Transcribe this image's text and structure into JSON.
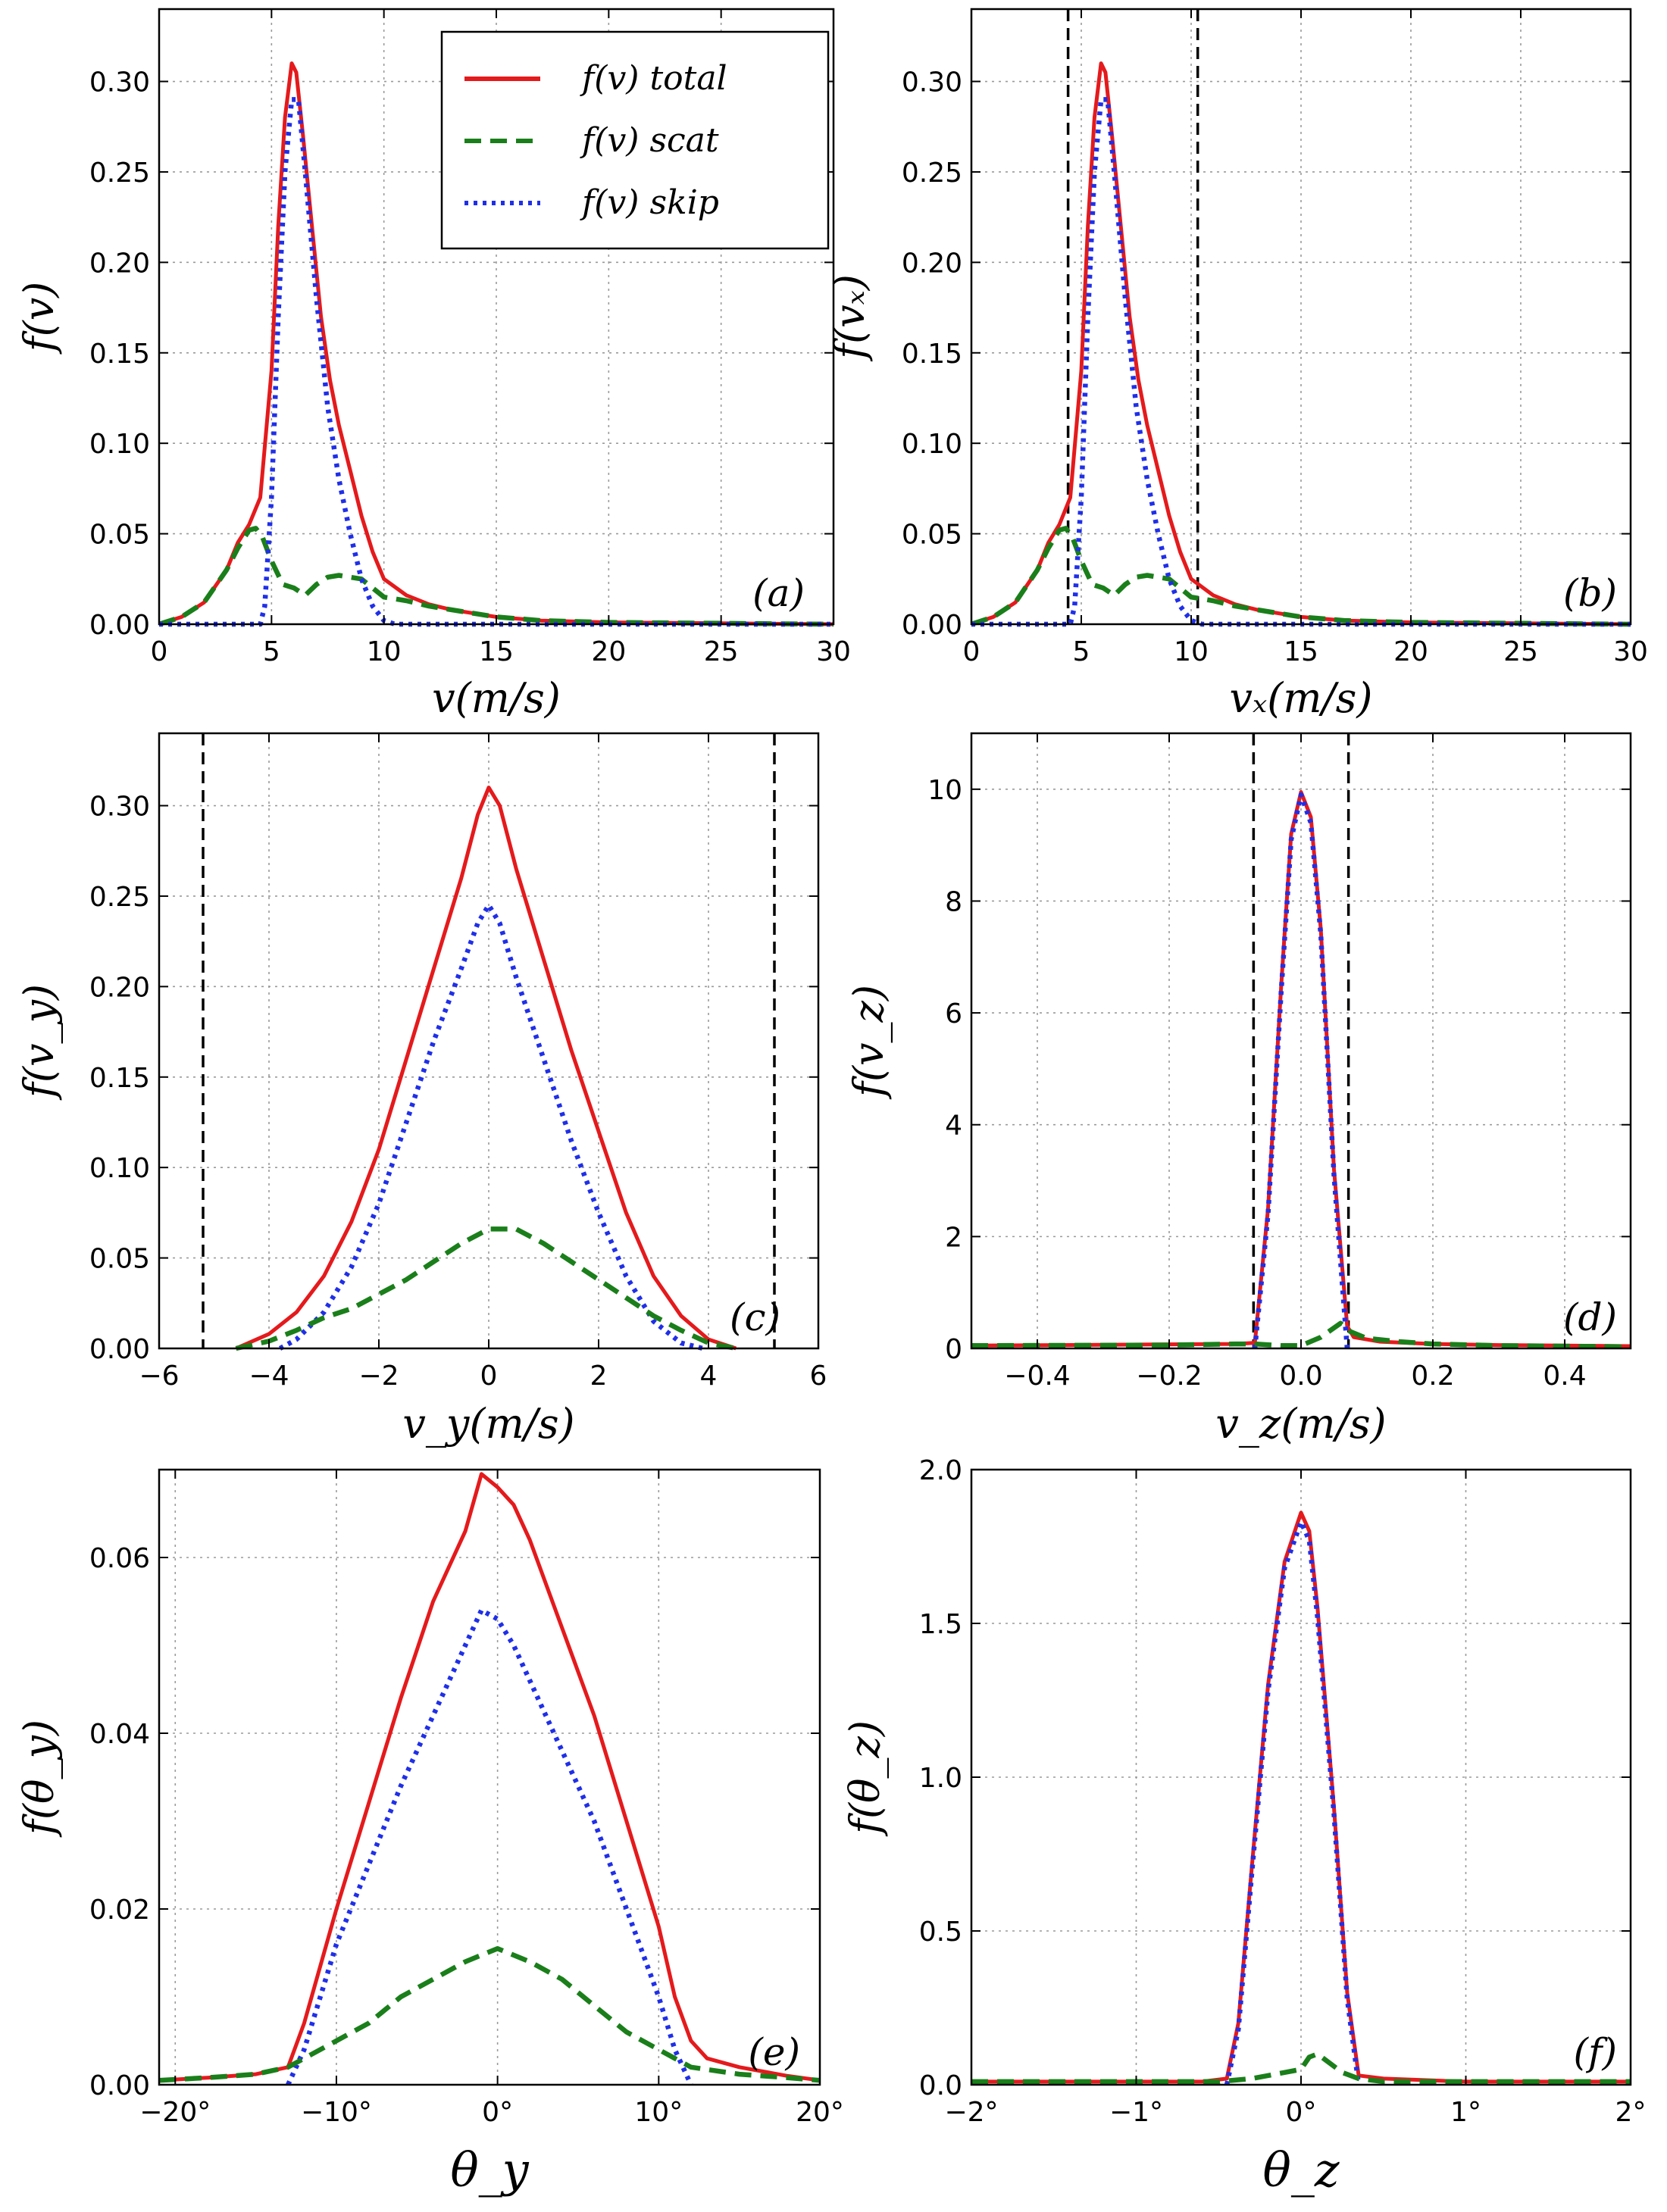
{
  "legend": [
    {
      "label": "f(v)  total",
      "color": "#e41a1c",
      "dash": "solid"
    },
    {
      "label": "f(v)  scat",
      "color": "#1a7f1a",
      "dash": "dashed"
    },
    {
      "label": "f(v)  skip",
      "color": "#1f2fe8",
      "dash": "dotted"
    }
  ],
  "colors": {
    "total": "#e41a1c",
    "scat": "#1a7f1a",
    "skip": "#1f2fe8",
    "vline": "#000000"
  },
  "chart_data": [
    {
      "id": "a",
      "type": "line",
      "panel_label": "(a)",
      "xlabel": "v(m/s)",
      "ylabel": "f(v)",
      "xlim": [
        0,
        30
      ],
      "ylim": [
        0,
        0.34
      ],
      "xticks": [
        0,
        5,
        10,
        15,
        20,
        25,
        30
      ],
      "xtick_labels": [
        "0",
        "5",
        "10",
        "15",
        "20",
        "25",
        "30"
      ],
      "yticks": [
        0,
        0.05,
        0.1,
        0.15,
        0.2,
        0.25,
        0.3
      ],
      "ytick_labels": [
        "0.00",
        "0.05",
        "0.10",
        "0.15",
        "0.20",
        "0.25",
        "0.30"
      ],
      "legend": true,
      "vlines": [],
      "series": [
        {
          "name": "total",
          "x": [
            0,
            1,
            2,
            3,
            3.5,
            4,
            4.5,
            5,
            5.3,
            5.6,
            5.9,
            6.1,
            6.4,
            6.8,
            7.2,
            7.6,
            8,
            8.5,
            9,
            9.5,
            10,
            11,
            12,
            13,
            14,
            15,
            17,
            20,
            25,
            30
          ],
          "y": [
            0,
            0.004,
            0.012,
            0.03,
            0.045,
            0.055,
            0.07,
            0.14,
            0.22,
            0.28,
            0.31,
            0.305,
            0.27,
            0.22,
            0.17,
            0.135,
            0.11,
            0.085,
            0.06,
            0.04,
            0.025,
            0.016,
            0.011,
            0.008,
            0.006,
            0.004,
            0.002,
            0.001,
            0.0005,
            0
          ]
        },
        {
          "name": "scat",
          "x": [
            0,
            1,
            2,
            3,
            3.5,
            4,
            4.3,
            4.6,
            5,
            5.5,
            6,
            6.5,
            7,
            7.5,
            8,
            8.5,
            9,
            9.5,
            10,
            11,
            12,
            13,
            14,
            15,
            17,
            20,
            25,
            30
          ],
          "y": [
            0,
            0.004,
            0.012,
            0.03,
            0.042,
            0.052,
            0.053,
            0.048,
            0.035,
            0.022,
            0.02,
            0.016,
            0.022,
            0.026,
            0.027,
            0.026,
            0.025,
            0.02,
            0.015,
            0.013,
            0.01,
            0.008,
            0.006,
            0.004,
            0.002,
            0.001,
            0.0005,
            0
          ]
        },
        {
          "name": "skip",
          "x": [
            0,
            4.5,
            4.7,
            5,
            5.3,
            5.6,
            5.9,
            6.2,
            6.5,
            7,
            7.5,
            8,
            8.5,
            9,
            9.5,
            10,
            10.5,
            30
          ],
          "y": [
            0,
            0,
            0.01,
            0.07,
            0.17,
            0.25,
            0.29,
            0.29,
            0.25,
            0.18,
            0.12,
            0.08,
            0.05,
            0.025,
            0.01,
            0.002,
            0,
            0
          ]
        }
      ]
    },
    {
      "id": "b",
      "type": "line",
      "panel_label": "(b)",
      "xlabel": "vₓ(m/s)",
      "ylabel": "f(vₓ)",
      "xlim": [
        0,
        30
      ],
      "ylim": [
        0,
        0.34
      ],
      "xticks": [
        0,
        5,
        10,
        15,
        20,
        25,
        30
      ],
      "xtick_labels": [
        "0",
        "5",
        "10",
        "15",
        "20",
        "25",
        "30"
      ],
      "yticks": [
        0,
        0.05,
        0.1,
        0.15,
        0.2,
        0.25,
        0.3
      ],
      "ytick_labels": [
        "0.00",
        "0.05",
        "0.10",
        "0.15",
        "0.20",
        "0.25",
        "0.30"
      ],
      "legend": false,
      "vlines": [
        4.4,
        10.3
      ],
      "series": [
        {
          "name": "total",
          "x": [
            0,
            1,
            2,
            3,
            3.5,
            4,
            4.5,
            5,
            5.3,
            5.6,
            5.9,
            6.1,
            6.4,
            6.8,
            7.2,
            7.6,
            8,
            8.5,
            9,
            9.5,
            10,
            11,
            12,
            13,
            14,
            15,
            17,
            20,
            25,
            30
          ],
          "y": [
            0,
            0.004,
            0.012,
            0.03,
            0.045,
            0.055,
            0.07,
            0.14,
            0.22,
            0.28,
            0.31,
            0.305,
            0.27,
            0.22,
            0.17,
            0.135,
            0.11,
            0.085,
            0.06,
            0.04,
            0.025,
            0.016,
            0.011,
            0.008,
            0.006,
            0.004,
            0.002,
            0.001,
            0.0005,
            0
          ]
        },
        {
          "name": "scat",
          "x": [
            0,
            1,
            2,
            3,
            3.5,
            4,
            4.3,
            4.6,
            5,
            5.5,
            6,
            6.5,
            7,
            7.5,
            8,
            8.5,
            9,
            9.5,
            10,
            11,
            12,
            13,
            14,
            15,
            17,
            20,
            25,
            30
          ],
          "y": [
            0,
            0.004,
            0.012,
            0.03,
            0.042,
            0.052,
            0.053,
            0.048,
            0.035,
            0.022,
            0.02,
            0.016,
            0.022,
            0.026,
            0.027,
            0.026,
            0.025,
            0.02,
            0.015,
            0.013,
            0.01,
            0.008,
            0.006,
            0.004,
            0.002,
            0.001,
            0.0005,
            0
          ]
        },
        {
          "name": "skip",
          "x": [
            0,
            4.5,
            4.7,
            5,
            5.3,
            5.6,
            5.9,
            6.2,
            6.5,
            7,
            7.5,
            8,
            8.5,
            9,
            9.5,
            10,
            10.5,
            30
          ],
          "y": [
            0,
            0,
            0.01,
            0.07,
            0.17,
            0.25,
            0.29,
            0.29,
            0.25,
            0.18,
            0.12,
            0.08,
            0.05,
            0.025,
            0.01,
            0.002,
            0,
            0
          ]
        }
      ]
    },
    {
      "id": "c",
      "type": "line",
      "panel_label": "(c)",
      "xlabel": "v_y(m/s)",
      "ylabel": "f(v_y)",
      "xlim": [
        -6,
        6
      ],
      "ylim": [
        0,
        0.34
      ],
      "xticks": [
        -6,
        -4,
        -2,
        0,
        2,
        4,
        6
      ],
      "xtick_labels": [
        "−6",
        "−4",
        "−2",
        "0",
        "2",
        "4",
        "6"
      ],
      "yticks": [
        0,
        0.05,
        0.1,
        0.15,
        0.2,
        0.25,
        0.3
      ],
      "ytick_labels": [
        "0.00",
        "0.05",
        "0.10",
        "0.15",
        "0.20",
        "0.25",
        "0.30"
      ],
      "legend": false,
      "vlines": [
        -5.2,
        5.2
      ],
      "series": [
        {
          "name": "total",
          "x": [
            -4.6,
            -4,
            -3.5,
            -3,
            -2.5,
            -2,
            -1.5,
            -1,
            -0.5,
            -0.2,
            0,
            0.2,
            0.5,
            1,
            1.5,
            2,
            2.5,
            3,
            3.5,
            4,
            4.5
          ],
          "y": [
            0,
            0.008,
            0.02,
            0.04,
            0.07,
            0.11,
            0.16,
            0.21,
            0.26,
            0.295,
            0.31,
            0.3,
            0.265,
            0.215,
            0.165,
            0.12,
            0.075,
            0.04,
            0.018,
            0.005,
            0
          ]
        },
        {
          "name": "skip",
          "x": [
            -3.8,
            -3.5,
            -3,
            -2.5,
            -2,
            -1.5,
            -1,
            -0.5,
            -0.2,
            0,
            0.2,
            0.5,
            1,
            1.5,
            2,
            2.5,
            3,
            3.5,
            3.9
          ],
          "y": [
            0,
            0.005,
            0.02,
            0.045,
            0.08,
            0.125,
            0.17,
            0.21,
            0.235,
            0.245,
            0.235,
            0.205,
            0.16,
            0.115,
            0.075,
            0.04,
            0.015,
            0.003,
            0
          ]
        },
        {
          "name": "scat",
          "x": [
            -4.6,
            -4,
            -3.5,
            -3,
            -2.5,
            -2,
            -1.5,
            -1,
            -0.5,
            0,
            0.5,
            1,
            1.5,
            2,
            2.5,
            3,
            3.5,
            4,
            4.5
          ],
          "y": [
            0,
            0.004,
            0.01,
            0.017,
            0.022,
            0.03,
            0.038,
            0.048,
            0.058,
            0.066,
            0.066,
            0.058,
            0.048,
            0.038,
            0.028,
            0.018,
            0.01,
            0.003,
            0
          ]
        }
      ]
    },
    {
      "id": "d",
      "type": "line",
      "panel_label": "(d)",
      "xlabel": "v_z(m/s)",
      "ylabel": "f(v_z)",
      "xlim": [
        -0.5,
        0.5
      ],
      "ylim": [
        0,
        11
      ],
      "xticks": [
        -0.4,
        -0.2,
        0.0,
        0.2,
        0.4
      ],
      "xtick_labels": [
        "−0.4",
        "−0.2",
        "0.0",
        "0.2",
        "0.4"
      ],
      "yticks": [
        0,
        2,
        4,
        6,
        8,
        10
      ],
      "ytick_labels": [
        "0",
        "2",
        "4",
        "6",
        "8",
        "10"
      ],
      "legend": false,
      "vlines": [
        -0.072,
        0.072
      ],
      "series": [
        {
          "name": "total",
          "x": [
            -0.5,
            -0.1,
            -0.07,
            -0.05,
            -0.03,
            -0.015,
            0,
            0.015,
            0.03,
            0.05,
            0.07,
            0.08,
            0.12,
            0.2,
            0.3,
            0.5
          ],
          "y": [
            0.05,
            0.08,
            0.1,
            2.5,
            6.5,
            9.2,
            9.95,
            9.5,
            7.5,
            3.2,
            0.4,
            0.2,
            0.12,
            0.08,
            0.06,
            0.04
          ]
        },
        {
          "name": "skip",
          "x": [
            -0.07,
            -0.05,
            -0.03,
            -0.015,
            0,
            0.015,
            0.03,
            0.05,
            0.07
          ],
          "y": [
            0,
            2.4,
            6.4,
            9.1,
            9.9,
            9.4,
            7.4,
            3.1,
            0
          ]
        },
        {
          "name": "scat",
          "x": [
            -0.5,
            -0.2,
            -0.1,
            -0.07,
            -0.03,
            0,
            0.03,
            0.06,
            0.075,
            0.1,
            0.15,
            0.2,
            0.3,
            0.5
          ],
          "y": [
            0.05,
            0.06,
            0.08,
            0.08,
            0.05,
            0.05,
            0.2,
            0.45,
            0.3,
            0.18,
            0.12,
            0.08,
            0.05,
            0.03
          ]
        }
      ]
    },
    {
      "id": "e",
      "type": "line",
      "panel_label": "(e)",
      "xlabel": "θ_y",
      "ylabel": "f(θ_y)",
      "xlim": [
        -21,
        20
      ],
      "ylim": [
        0,
        0.07
      ],
      "xticks": [
        -20,
        -10,
        0,
        10,
        20
      ],
      "xtick_labels": [
        "−20°",
        "−10°",
        "0°",
        "10°",
        "20°"
      ],
      "yticks": [
        0,
        0.02,
        0.04,
        0.06
      ],
      "ytick_labels": [
        "0.00",
        "0.02",
        "0.04",
        "0.06"
      ],
      "legend": false,
      "vlines": [],
      "series": [
        {
          "name": "total",
          "x": [
            -21,
            -18,
            -15,
            -13,
            -12,
            -10,
            -8,
            -6,
            -4,
            -2,
            -1,
            0,
            1,
            2,
            4,
            6,
            8,
            10,
            11,
            12,
            13,
            15,
            18,
            20
          ],
          "y": [
            0.0005,
            0.0008,
            0.0012,
            0.002,
            0.007,
            0.02,
            0.032,
            0.044,
            0.055,
            0.063,
            0.0695,
            0.068,
            0.066,
            0.062,
            0.052,
            0.042,
            0.03,
            0.018,
            0.01,
            0.005,
            0.003,
            0.002,
            0.001,
            0.0005
          ]
        },
        {
          "name": "skip",
          "x": [
            -13,
            -12,
            -10,
            -8,
            -6,
            -4,
            -2,
            -1,
            0,
            1,
            2,
            4,
            6,
            8,
            10,
            11,
            12
          ],
          "y": [
            0,
            0.004,
            0.016,
            0.025,
            0.034,
            0.042,
            0.05,
            0.054,
            0.053,
            0.05,
            0.046,
            0.038,
            0.03,
            0.02,
            0.01,
            0.004,
            0
          ]
        },
        {
          "name": "scat",
          "x": [
            -21,
            -18,
            -15,
            -13,
            -12,
            -10,
            -8,
            -6,
            -4,
            -2,
            0,
            2,
            4,
            6,
            8,
            10,
            12,
            15,
            18,
            20
          ],
          "y": [
            0.0005,
            0.0008,
            0.0012,
            0.002,
            0.003,
            0.005,
            0.007,
            0.01,
            0.012,
            0.014,
            0.0155,
            0.014,
            0.012,
            0.009,
            0.006,
            0.004,
            0.002,
            0.0012,
            0.0008,
            0.0005
          ]
        }
      ]
    },
    {
      "id": "f",
      "type": "line",
      "panel_label": "(f)",
      "xlabel": "θ_z",
      "ylabel": "f(θ_z)",
      "xlim": [
        -2,
        2
      ],
      "ylim": [
        0,
        2.0
      ],
      "xticks": [
        -2,
        -1,
        0,
        1,
        2
      ],
      "xtick_labels": [
        "−2°",
        "−1°",
        "0°",
        "1°",
        "2°"
      ],
      "yticks": [
        0,
        0.5,
        1.0,
        1.5,
        2.0
      ],
      "ytick_labels": [
        "0.0",
        "0.5",
        "1.0",
        "1.5",
        "2.0"
      ],
      "legend": false,
      "vlines": [],
      "series": [
        {
          "name": "total",
          "x": [
            -2,
            -0.6,
            -0.45,
            -0.38,
            -0.3,
            -0.2,
            -0.1,
            0,
            0.05,
            0.1,
            0.2,
            0.28,
            0.35,
            0.5,
            1,
            2
          ],
          "y": [
            0.01,
            0.01,
            0.02,
            0.2,
            0.7,
            1.3,
            1.7,
            1.86,
            1.8,
            1.55,
            0.9,
            0.3,
            0.03,
            0.02,
            0.01,
            0.01
          ]
        },
        {
          "name": "skip",
          "x": [
            -0.45,
            -0.38,
            -0.3,
            -0.2,
            -0.1,
            0,
            0.05,
            0.1,
            0.2,
            0.28,
            0.35
          ],
          "y": [
            0,
            0.18,
            0.68,
            1.28,
            1.68,
            1.83,
            1.77,
            1.52,
            0.88,
            0.28,
            0
          ]
        },
        {
          "name": "scat",
          "x": [
            -2,
            -0.5,
            -0.3,
            -0.1,
            0,
            0.05,
            0.1,
            0.15,
            0.25,
            0.35,
            0.5,
            1,
            2
          ],
          "y": [
            0.01,
            0.01,
            0.02,
            0.04,
            0.05,
            0.09,
            0.1,
            0.08,
            0.04,
            0.02,
            0.01,
            0.01,
            0.01
          ]
        }
      ]
    }
  ]
}
